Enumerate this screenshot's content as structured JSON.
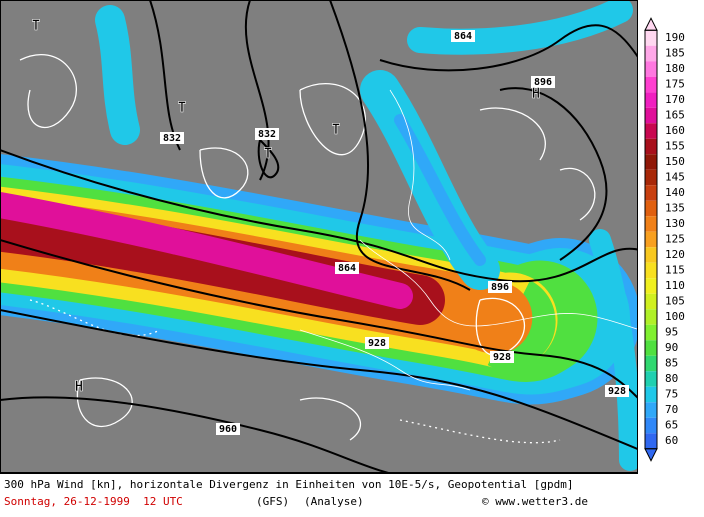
{
  "map": {
    "contour_labels": [
      "864",
      "896",
      "832",
      "832",
      "864",
      "896",
      "928",
      "928",
      "928",
      "960"
    ],
    "pressure_marks": [
      "T",
      "T",
      "T",
      "T",
      "H",
      "H"
    ]
  },
  "colorbar": {
    "labels": [
      190,
      185,
      180,
      175,
      170,
      165,
      160,
      155,
      150,
      145,
      140,
      135,
      130,
      125,
      120,
      115,
      110,
      105,
      100,
      95,
      90,
      85,
      80,
      75,
      70,
      65,
      60
    ],
    "colors": [
      "#ffd8f0",
      "#ffa8e8",
      "#ff78e0",
      "#ff40d0",
      "#f020c0",
      "#e0109a",
      "#c80850",
      "#a8101c",
      "#901808",
      "#a82808",
      "#c84010",
      "#e06010",
      "#f08018",
      "#f8a020",
      "#f8c820",
      "#f8e020",
      "#f0f020",
      "#d0f020",
      "#b0f028",
      "#80f030",
      "#50e040",
      "#30d870",
      "#20d0b0",
      "#20c8e8",
      "#30a8f8",
      "#3088f8",
      "#3068f0"
    ]
  },
  "footer": {
    "line1": "300 hPa Wind [kn], horizontale Divergenz in Einheiten von 10E-5/s, Geopotential [gpdm]",
    "date": "Sonntag, 26-12-1999  12 UTC",
    "model": "(GFS)",
    "run": "(Analyse)",
    "credit": "© www.wetter3.de"
  }
}
